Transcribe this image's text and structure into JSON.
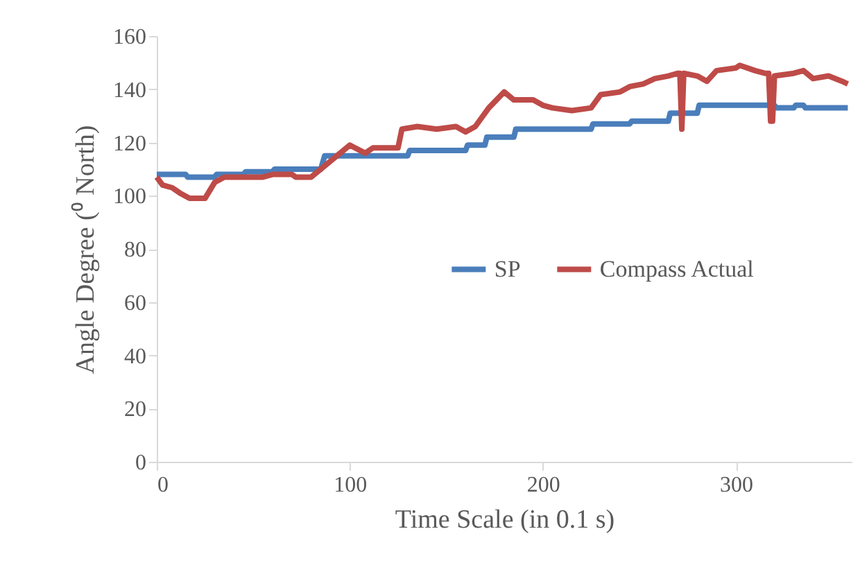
{
  "chart_data": {
    "type": "line",
    "xlabel": "Time Scale (in 0.1 s)",
    "ylabel": "Angle Degree  (⁰ North)",
    "xlim": [
      0,
      360
    ],
    "xticks": [
      0,
      100,
      200,
      300
    ],
    "ylim": [
      0,
      160
    ],
    "yticks": [
      0,
      20,
      40,
      60,
      80,
      100,
      120,
      140,
      160
    ],
    "grid": false,
    "legend": "center right",
    "line_style": "solid",
    "series": [
      {
        "name": "SP",
        "color": "#4a7ebb",
        "x": [
          0,
          15,
          16,
          30,
          31,
          45,
          46,
          60,
          61,
          85,
          87,
          130,
          131,
          160,
          161,
          170,
          171,
          185,
          186,
          225,
          226,
          245,
          246,
          265,
          266,
          280,
          281,
          290,
          291,
          320,
          321,
          330,
          331,
          335,
          336,
          358
        ],
        "values": [
          108,
          108,
          107,
          107,
          108,
          108,
          109,
          109,
          110,
          110,
          115,
          115,
          117,
          117,
          119,
          119,
          122,
          122,
          125,
          125,
          127,
          127,
          128,
          128,
          131,
          131,
          134,
          134,
          134,
          134,
          133,
          133,
          134,
          134,
          133,
          133
        ]
      },
      {
        "name": "Compass Actual",
        "color": "#be4b48",
        "x": [
          0,
          3,
          8,
          12,
          17,
          25,
          30,
          35,
          55,
          60,
          70,
          72,
          80,
          85,
          90,
          95,
          100,
          108,
          112,
          125,
          127,
          135,
          145,
          155,
          160,
          165,
          172,
          176,
          180,
          185,
          195,
          200,
          205,
          215,
          225,
          230,
          240,
          245,
          252,
          258,
          265,
          270,
          271,
          272,
          273,
          280,
          285,
          290,
          300,
          302,
          310,
          315,
          317,
          318,
          319,
          320,
          330,
          335,
          340,
          348,
          355,
          358
        ],
        "values": [
          107,
          104,
          103,
          101,
          99,
          99,
          105,
          107,
          107,
          108,
          108,
          107,
          107,
          110,
          113,
          116,
          119,
          116,
          118,
          118,
          125,
          126,
          125,
          126,
          124,
          126,
          133,
          136,
          139,
          136,
          136,
          134,
          133,
          132,
          133,
          138,
          139,
          141,
          142,
          144,
          145,
          146,
          146,
          125,
          146,
          145,
          143,
          147,
          148,
          149,
          147,
          146,
          146,
          128,
          128,
          145,
          146,
          147,
          144,
          145,
          143,
          142
        ]
      }
    ]
  }
}
